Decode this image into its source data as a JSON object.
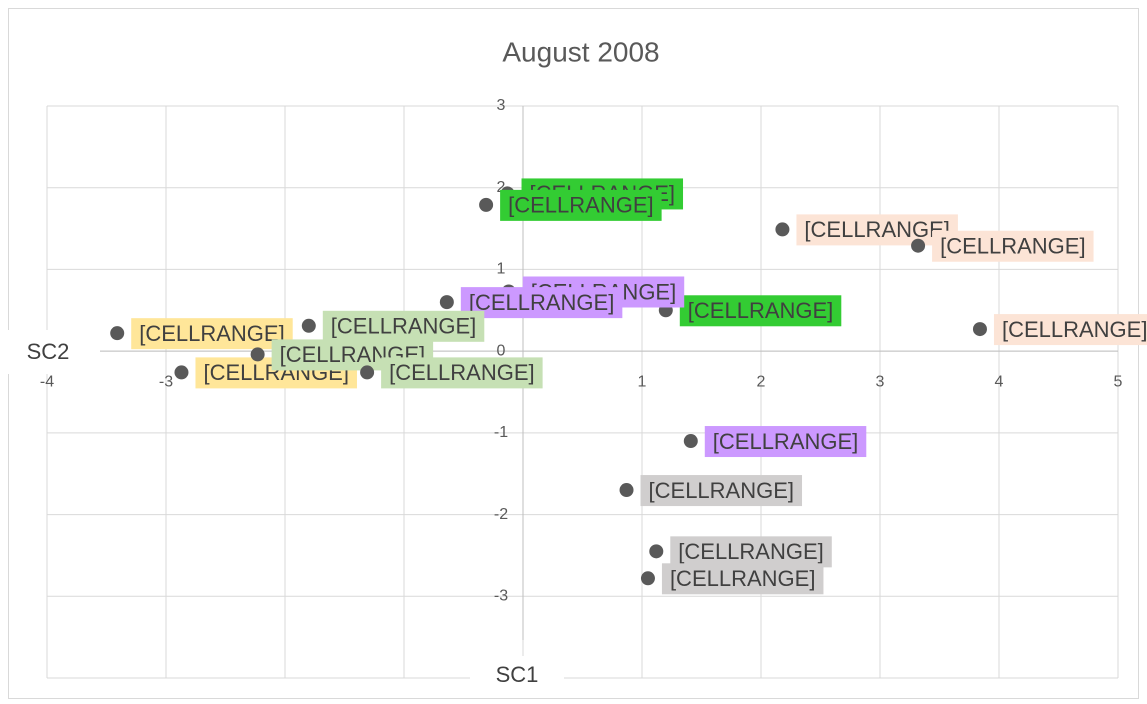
{
  "chart_data": {
    "type": "scatter",
    "title": "August 2008",
    "x_label": "SC1",
    "y_label": "SC2",
    "xlim": [
      -4,
      5
    ],
    "xticks": [
      -4,
      -3,
      -2,
      -1,
      0,
      1,
      2,
      3,
      4,
      5
    ],
    "ylim": [
      -4,
      3
    ],
    "yticks": [
      -4,
      -3,
      -2,
      -1,
      0,
      1,
      2,
      3
    ],
    "grid": true,
    "marker_color": "#595959",
    "series": [
      {
        "color": "#33cc33",
        "x": [
          -0.13,
          -0.31,
          1.2
        ],
        "values": [
          1.93,
          1.79,
          0.5
        ],
        "labels": [
          "[CELLRANGE]",
          "[CELLRANGE]",
          "[CELLRANGE]"
        ]
      },
      {
        "color": "#cc99ff",
        "x": [
          -0.12,
          -0.64,
          1.41
        ],
        "values": [
          0.73,
          0.6,
          -1.1
        ],
        "labels": [
          "[CELLRANGE]",
          "[CELLRANGE]",
          "[CELLRANGE]"
        ]
      },
      {
        "color": "#fce4d6",
        "x": [
          2.18,
          3.32,
          3.84
        ],
        "values": [
          1.49,
          1.29,
          0.27
        ],
        "labels": [
          "[CELLRANGE]",
          "[CELLRANGE]",
          "[CELLRANGE]"
        ]
      },
      {
        "color": "#d0cece",
        "x": [
          0.87,
          1.12,
          1.05
        ],
        "values": [
          -1.7,
          -2.45,
          -2.78
        ],
        "labels": [
          "[CELLRANGE]",
          "[CELLRANGE]",
          "[CELLRANGE]"
        ]
      },
      {
        "color": "#ffe699",
        "x": [
          -3.41,
          -2.87
        ],
        "values": [
          0.22,
          -0.26
        ],
        "labels": [
          "[CELLRANGE]",
          "[CELLRANGE]"
        ]
      },
      {
        "color": "#c6e0b4",
        "x": [
          -1.8,
          -2.23,
          -1.31
        ],
        "values": [
          0.31,
          -0.04,
          -0.26
        ],
        "labels": [
          "[CELLRANGE]",
          "[CELLRANGE]",
          "[CELLRANGE]"
        ]
      }
    ]
  }
}
